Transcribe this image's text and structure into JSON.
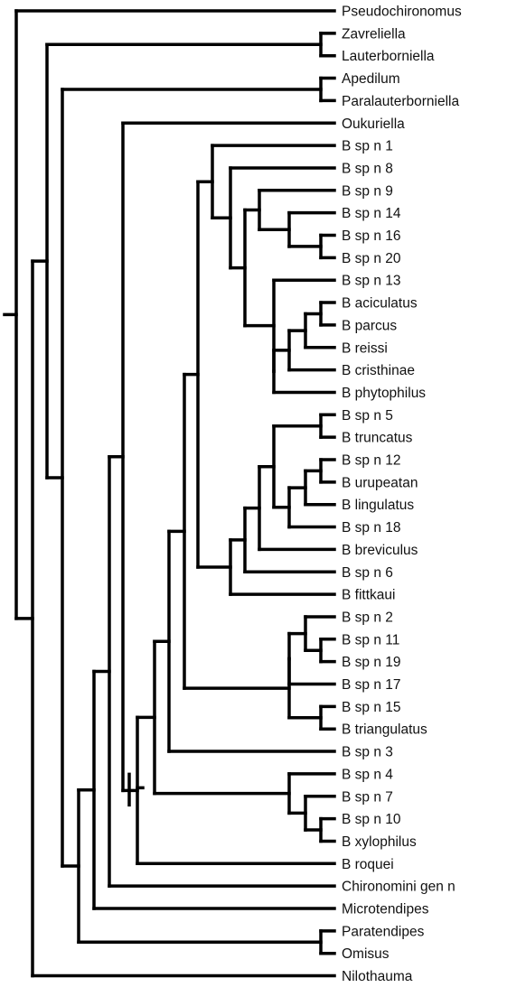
{
  "tree": {
    "type": "cladogram",
    "leaves": [
      {
        "id": "L0",
        "label": "Pseudochironomus"
      },
      {
        "id": "L1",
        "label": "Zavreliella"
      },
      {
        "id": "L2",
        "label": "Lauterborniella"
      },
      {
        "id": "L3",
        "label": "Apedilum"
      },
      {
        "id": "L4",
        "label": "Paralauterborniella"
      },
      {
        "id": "L5",
        "label": "Oukuriella"
      },
      {
        "id": "L6",
        "label": "B sp n 1"
      },
      {
        "id": "L7",
        "label": "B sp n 8"
      },
      {
        "id": "L8",
        "label": "B sp n 9"
      },
      {
        "id": "L9",
        "label": "B sp n 14"
      },
      {
        "id": "L10",
        "label": "B sp n 16"
      },
      {
        "id": "L11",
        "label": "B sp n 20"
      },
      {
        "id": "L12",
        "label": "B sp n 13"
      },
      {
        "id": "L13",
        "label": "B aciculatus"
      },
      {
        "id": "L14",
        "label": "B parcus"
      },
      {
        "id": "L15",
        "label": "B reissi"
      },
      {
        "id": "L16",
        "label": "B cristhinae"
      },
      {
        "id": "L17",
        "label": "B phytophilus"
      },
      {
        "id": "L18",
        "label": "B sp n 5"
      },
      {
        "id": "L19",
        "label": "B truncatus"
      },
      {
        "id": "L20",
        "label": "B sp n 12"
      },
      {
        "id": "L21",
        "label": "B urupeatan"
      },
      {
        "id": "L22",
        "label": "B lingulatus"
      },
      {
        "id": "L23",
        "label": "B sp n 18"
      },
      {
        "id": "L24",
        "label": "B breviculus"
      },
      {
        "id": "L25",
        "label": "B sp n 6"
      },
      {
        "id": "L26",
        "label": "B fittkaui"
      },
      {
        "id": "L27",
        "label": "B sp n 2"
      },
      {
        "id": "L28",
        "label": "B sp n 11"
      },
      {
        "id": "L29",
        "label": "B sp n 19"
      },
      {
        "id": "L30",
        "label": "B sp n 17"
      },
      {
        "id": "L31",
        "label": "B sp n 15"
      },
      {
        "id": "L32",
        "label": "B triangulatus"
      },
      {
        "id": "L33",
        "label": "B sp n 3"
      },
      {
        "id": "L34",
        "label": "B sp n 4"
      },
      {
        "id": "L35",
        "label": "B sp n 7"
      },
      {
        "id": "L36",
        "label": "B sp n 10"
      },
      {
        "id": "L37",
        "label": "B xylophilus"
      },
      {
        "id": "L38",
        "label": "B roquei"
      },
      {
        "id": "L39",
        "label": "Chironomini gen n"
      },
      {
        "id": "L40",
        "label": "Microtendipes"
      },
      {
        "id": "L41",
        "label": "Paratendipes"
      },
      {
        "id": "L42",
        "label": "Omisus"
      },
      {
        "id": "L43",
        "label": "Nilothauma"
      }
    ],
    "clades": [
      {
        "id": "c_zav_lau",
        "children": [
          "L1",
          "L2"
        ]
      },
      {
        "id": "c_ape_par",
        "children": [
          "L3",
          "L4"
        ]
      },
      {
        "id": "c_16_20",
        "children": [
          "L10",
          "L11"
        ]
      },
      {
        "id": "c_14_16_20",
        "children": [
          "L9",
          "c_16_20"
        ]
      },
      {
        "id": "c_9grp",
        "children": [
          "L8",
          "c_14_16_20"
        ]
      },
      {
        "id": "c_aci_par",
        "children": [
          "L13",
          "L14"
        ]
      },
      {
        "id": "c_aci_rei",
        "children": [
          "c_aci_par",
          "L15"
        ]
      },
      {
        "id": "c_aci_cri",
        "children": [
          "c_aci_rei",
          "L16"
        ]
      },
      {
        "id": "c_aci_phy",
        "children": [
          "c_aci_cri",
          "L17"
        ]
      },
      {
        "id": "c_13grp",
        "children": [
          "L12",
          "c_aci_phy"
        ]
      },
      {
        "id": "c_8_9_13",
        "children": [
          "c_9grp",
          "c_13grp"
        ]
      },
      {
        "id": "c_8grp",
        "children": [
          "L7",
          "c_8_9_13"
        ]
      },
      {
        "id": "c_1grp",
        "children": [
          "L6",
          "c_8grp"
        ]
      },
      {
        "id": "c_5_tru",
        "children": [
          "L18",
          "L19"
        ]
      },
      {
        "id": "c_12_uru",
        "children": [
          "L20",
          "L21"
        ]
      },
      {
        "id": "c_12_lin",
        "children": [
          "c_12_uru",
          "L22"
        ]
      },
      {
        "id": "c_12_18",
        "children": [
          "c_12_lin",
          "L23"
        ]
      },
      {
        "id": "c_5_18",
        "children": [
          "c_5_tru",
          "c_12_18"
        ]
      },
      {
        "id": "c_5_bre",
        "children": [
          "c_5_18",
          "L24"
        ]
      },
      {
        "id": "c_5_6",
        "children": [
          "c_5_bre",
          "L25"
        ]
      },
      {
        "id": "c_5_fit",
        "children": [
          "c_5_6",
          "L26"
        ]
      },
      {
        "id": "c_bigA",
        "children": [
          "c_1grp",
          "c_5_fit"
        ]
      },
      {
        "id": "c_19",
        "children": [
          "L28",
          "L29"
        ]
      },
      {
        "id": "c_2_19",
        "children": [
          "L27",
          "c_19"
        ]
      },
      {
        "id": "c_2_17",
        "children": [
          "c_2_19",
          "L30"
        ]
      },
      {
        "id": "c_15_tri",
        "children": [
          "L31",
          "L32"
        ]
      },
      {
        "id": "c_2_tri",
        "children": [
          "c_2_17",
          "c_15_tri"
        ]
      },
      {
        "id": "c_A_tri",
        "children": [
          "c_bigA",
          "c_2_tri"
        ]
      },
      {
        "id": "c_A_3",
        "children": [
          "c_A_tri",
          "L33"
        ]
      },
      {
        "id": "c_10_xyl",
        "children": [
          "L36",
          "L37"
        ]
      },
      {
        "id": "c_7_xyl",
        "children": [
          "L35",
          "c_10_xyl"
        ]
      },
      {
        "id": "c_4_xyl",
        "children": [
          "L34",
          "c_7_xyl"
        ]
      },
      {
        "id": "c_A_4",
        "children": [
          "c_A_3",
          "c_4_xyl"
        ]
      },
      {
        "id": "c_beardius",
        "children": [
          "c_A_4",
          "L38"
        ]
      },
      {
        "id": "c_ouk",
        "children": [
          "L5",
          "c_beardius"
        ]
      },
      {
        "id": "c_ouk_chi",
        "children": [
          "c_ouk",
          "L39"
        ]
      },
      {
        "id": "c_ouk_mic",
        "children": [
          "c_ouk_chi",
          "L40"
        ]
      },
      {
        "id": "c_para_omi",
        "children": [
          "L41",
          "L42"
        ]
      },
      {
        "id": "c_ouk_omi",
        "children": [
          "c_ouk_mic",
          "c_para_omi"
        ]
      },
      {
        "id": "c_ape_omi",
        "children": [
          "c_ape_par",
          "c_ouk_omi"
        ]
      },
      {
        "id": "c_zav_omi",
        "children": [
          "c_zav_lau",
          "c_ape_omi"
        ]
      },
      {
        "id": "c_zav_nil",
        "children": [
          "c_zav_omi",
          "L43"
        ]
      },
      {
        "id": "root",
        "children": [
          "L0",
          "c_zav_nil"
        ]
      }
    ]
  }
}
